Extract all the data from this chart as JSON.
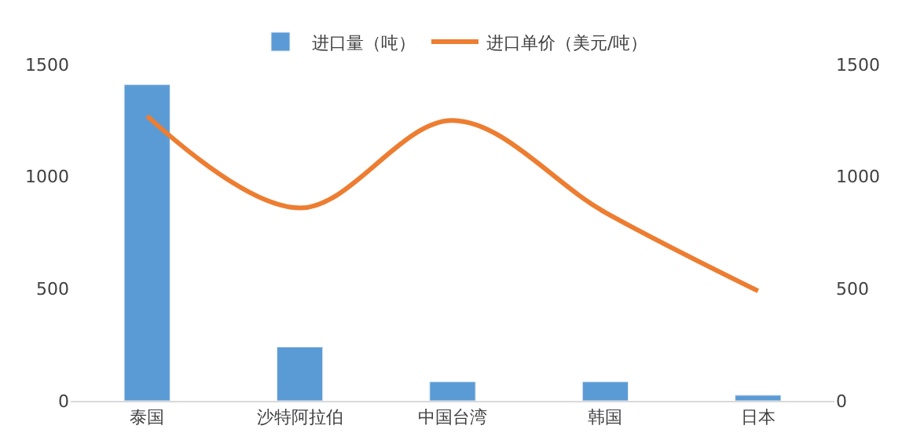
{
  "chart_data": {
    "type": "bar",
    "categories": [
      "泰国",
      "沙特阿拉伯",
      "中国台湾",
      "韩国",
      "日本"
    ],
    "series": [
      {
        "name": "进口量（吨）",
        "color": "#5b9bd5",
        "values": [
          1410,
          240,
          85,
          85,
          25
        ]
      },
      {
        "name": "进口单价（美元/吨）",
        "type": "line",
        "axis": "y2",
        "color": "#ed7d31",
        "values": [
          1270,
          860,
          1250,
          840,
          490
        ]
      }
    ],
    "ylim": [
      0,
      1500
    ],
    "yticks": [
      0,
      500,
      1000,
      1500
    ],
    "y2lim": [
      0,
      1500
    ],
    "y2ticks": [
      0,
      500,
      1000,
      1500
    ],
    "legend": "top",
    "marker": "none",
    "line_style": "solid"
  }
}
